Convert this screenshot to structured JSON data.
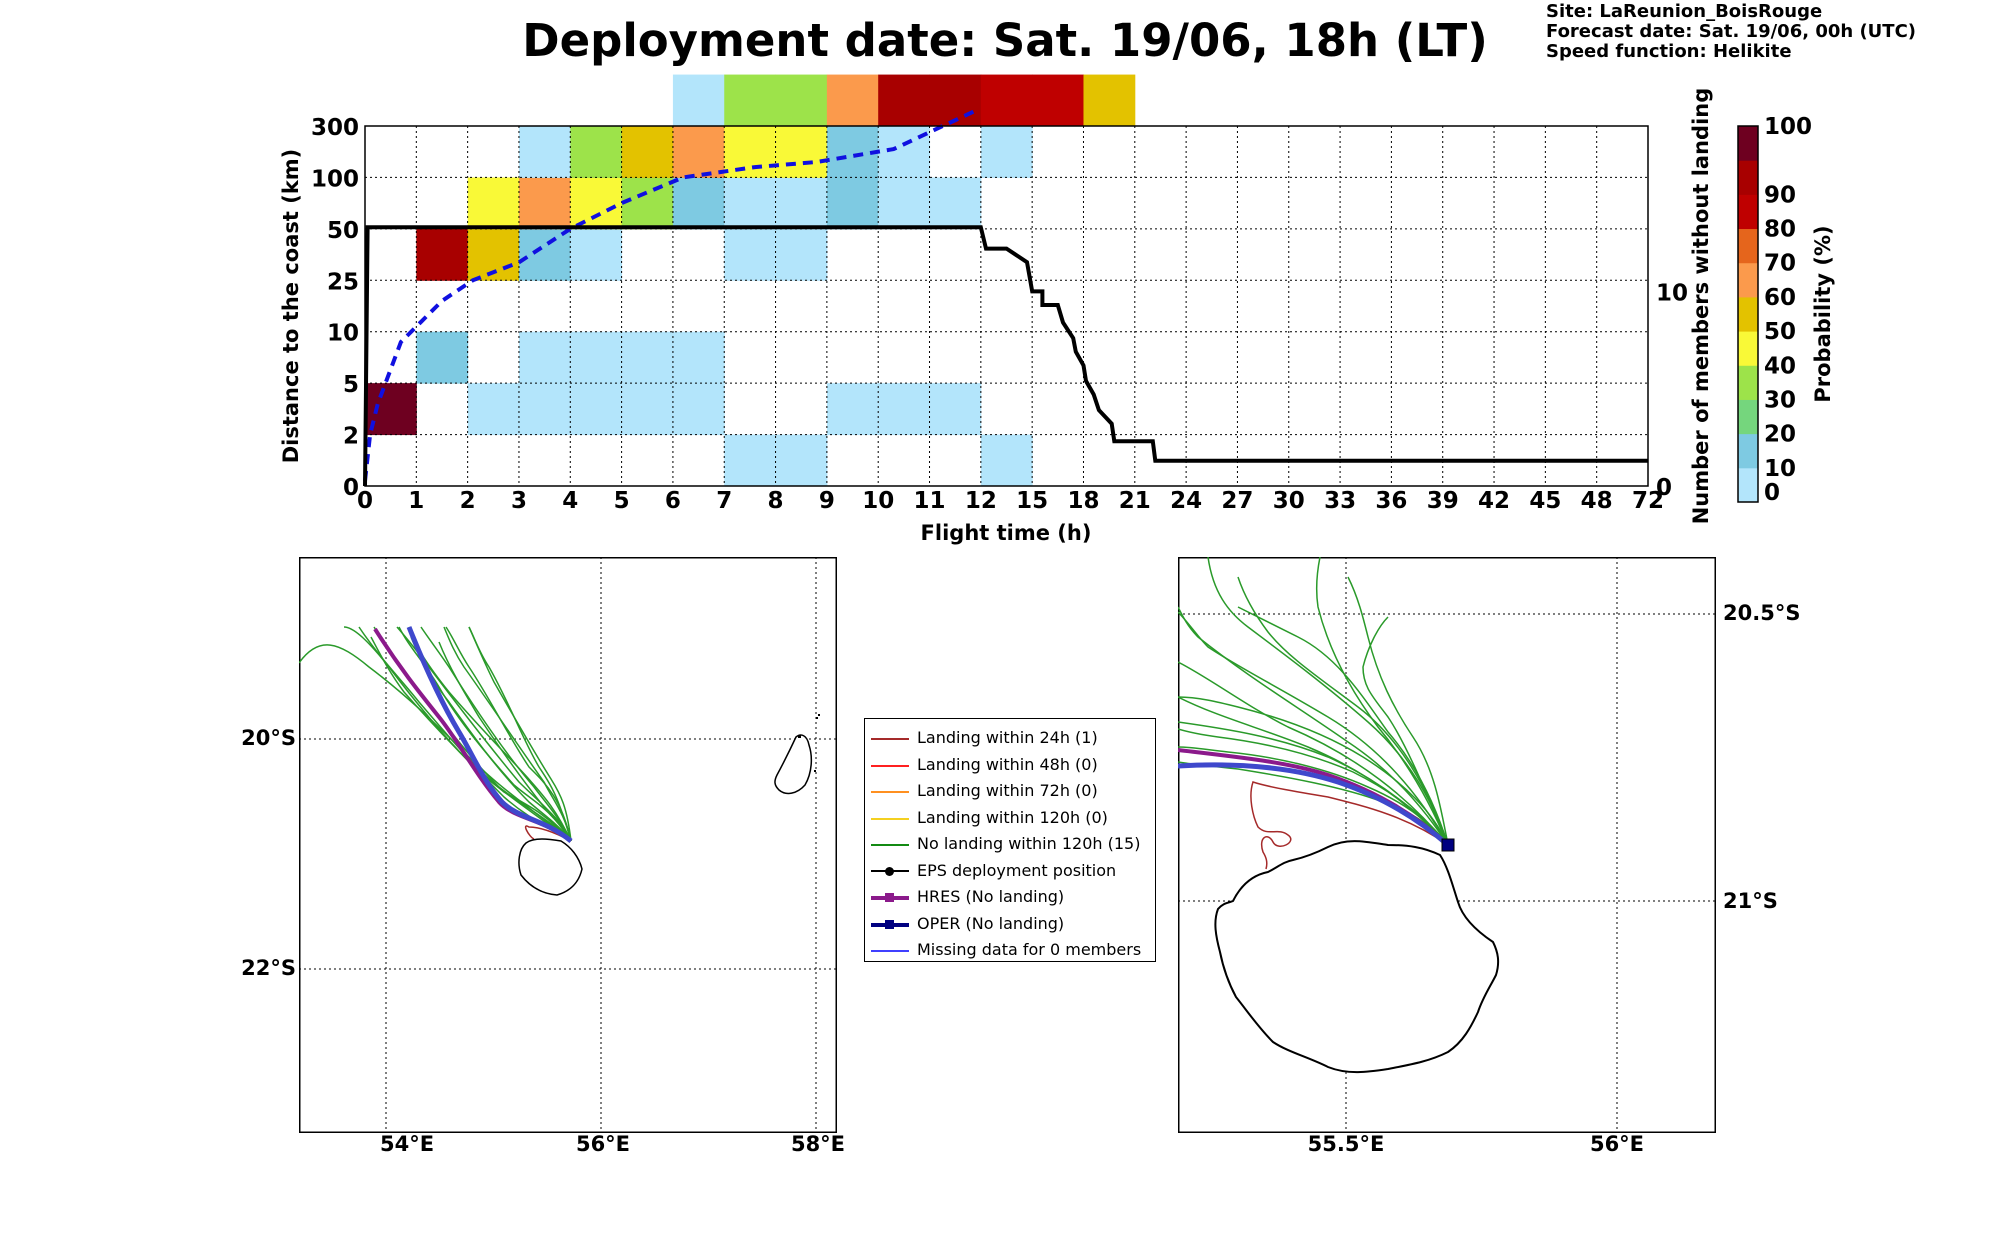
{
  "title": "Deployment date: Sat. 19/06, 18h (LT)",
  "info": {
    "site": "Site: LaReunion_BoisRouge",
    "forecast": "Forecast date: Sat. 19/06, 00h (UTC)",
    "speed": "Speed function: Helikite"
  },
  "chart_data": [
    {
      "type": "heatmap",
      "xlabel": "Flight time (h)",
      "ylabel": "Distance to the coast (km)",
      "y2label": "Number of members without landing",
      "x_ticks": [
        "0",
        "1",
        "2",
        "3",
        "4",
        "5",
        "6",
        "7",
        "8",
        "9",
        "10",
        "11",
        "12",
        "15",
        "18",
        "21",
        "24",
        "27",
        "30",
        "33",
        "36",
        "39",
        "42",
        "45",
        "48",
        "72"
      ],
      "y_ticks": [
        "0",
        "2",
        "5",
        "10",
        "25",
        "50",
        "100",
        "300"
      ],
      "y2_ticks": [
        "0",
        "10"
      ],
      "y2lim": [
        0,
        18.5
      ],
      "grid": true,
      "colorbar": {
        "label": "Probability (%)",
        "ticks": [
          "0",
          "10",
          "20",
          "30",
          "40",
          "50",
          "60",
          "70",
          "80",
          "90",
          "100"
        ],
        "colors": [
          "#b3e5fb",
          "#7ecae2",
          "#75d67d",
          "#9de34a",
          "#f9f937",
          "#e3c200",
          "#fb9a4c",
          "#e5651c",
          "#bf0000",
          "#a80000",
          "#6e0020"
        ]
      },
      "cells": [
        {
          "x": 0,
          "y": 1,
          "p": 100
        },
        {
          "x": 1,
          "y": 2,
          "p": 10
        },
        {
          "x": 1,
          "y": 4,
          "p": 90
        },
        {
          "x": 2,
          "y": 1,
          "p": 5
        },
        {
          "x": 2,
          "y": 4,
          "p": 50
        },
        {
          "x": 2,
          "y": 5,
          "p": 40
        },
        {
          "x": 3,
          "y": 1,
          "p": 5
        },
        {
          "x": 3,
          "y": 2,
          "p": 5
        },
        {
          "x": 3,
          "y": 4,
          "p": 10
        },
        {
          "x": 3,
          "y": 5,
          "p": 60
        },
        {
          "x": 3,
          "y": 6,
          "p": 5
        },
        {
          "x": 4,
          "y": 1,
          "p": 5
        },
        {
          "x": 4,
          "y": 2,
          "p": 5
        },
        {
          "x": 4,
          "y": 4,
          "p": 5
        },
        {
          "x": 4,
          "y": 5,
          "p": 40
        },
        {
          "x": 4,
          "y": 6,
          "p": 30
        },
        {
          "x": 5,
          "y": 1,
          "p": 5
        },
        {
          "x": 5,
          "y": 2,
          "p": 5
        },
        {
          "x": 5,
          "y": 5,
          "p": 30
        },
        {
          "x": 5,
          "y": 6,
          "p": 50
        },
        {
          "x": 6,
          "y": 1,
          "p": 5
        },
        {
          "x": 6,
          "y": 2,
          "p": 5
        },
        {
          "x": 6,
          "y": 5,
          "p": 10
        },
        {
          "x": 6,
          "y": 6,
          "p": 60
        },
        {
          "x": 6,
          "y": 7,
          "p": 5
        },
        {
          "x": 7,
          "y": 0,
          "p": 5
        },
        {
          "x": 7,
          "y": 4,
          "p": 5
        },
        {
          "x": 7,
          "y": 5,
          "p": 5
        },
        {
          "x": 7,
          "y": 6,
          "p": 40
        },
        {
          "x": 7,
          "y": 7,
          "p": 30
        },
        {
          "x": 8,
          "y": 0,
          "p": 5
        },
        {
          "x": 8,
          "y": 4,
          "p": 5
        },
        {
          "x": 8,
          "y": 5,
          "p": 5
        },
        {
          "x": 8,
          "y": 6,
          "p": 40
        },
        {
          "x": 8,
          "y": 7,
          "p": 30
        },
        {
          "x": 9,
          "y": 1,
          "p": 5
        },
        {
          "x": 9,
          "y": 5,
          "p": 10
        },
        {
          "x": 9,
          "y": 6,
          "p": 10
        },
        {
          "x": 9,
          "y": 7,
          "p": 60
        },
        {
          "x": 10,
          "y": 1,
          "p": 5
        },
        {
          "x": 10,
          "y": 5,
          "p": 5
        },
        {
          "x": 10,
          "y": 6,
          "p": 5
        },
        {
          "x": 10,
          "y": 7,
          "p": 90
        },
        {
          "x": 11,
          "y": 1,
          "p": 5
        },
        {
          "x": 11,
          "y": 5,
          "p": 5
        },
        {
          "x": 11,
          "y": 7,
          "p": 90
        },
        {
          "x": 12,
          "y": 0,
          "p": 5
        },
        {
          "x": 12,
          "y": 6,
          "p": 5
        },
        {
          "x": 12,
          "y": 7,
          "p": 80
        },
        {
          "x": 13,
          "y": 7,
          "p": 80
        },
        {
          "x": 14,
          "y": 7,
          "p": 50
        }
      ],
      "members_without_landing": [
        [
          0,
          0
        ],
        [
          0.05,
          13.3
        ],
        [
          12,
          13.3
        ],
        [
          12.1,
          12.2
        ],
        [
          12.5,
          12.2
        ],
        [
          12.9,
          11.5
        ],
        [
          13,
          10
        ],
        [
          13.2,
          10
        ],
        [
          13.2,
          9.3
        ],
        [
          13.5,
          9.3
        ],
        [
          13.6,
          8.4
        ],
        [
          13.8,
          7.6
        ],
        [
          13.85,
          6.9
        ],
        [
          14.0,
          6.2
        ],
        [
          14.05,
          5.4
        ],
        [
          14.2,
          4.7
        ],
        [
          14.3,
          3.9
        ],
        [
          14.55,
          3.2
        ],
        [
          14.6,
          2.3
        ],
        [
          15.35,
          2.3
        ],
        [
          15.4,
          1.3
        ],
        [
          25,
          1.3
        ]
      ],
      "mean_distance_curve": [
        [
          0,
          0.1
        ],
        [
          0.1,
          1
        ],
        [
          0.25,
          1.6
        ],
        [
          0.4,
          2
        ],
        [
          0.7,
          2.8
        ],
        [
          1.1,
          3.2
        ],
        [
          1.5,
          3.6
        ],
        [
          2.1,
          4
        ],
        [
          3.0,
          4.35
        ],
        [
          4.0,
          5
        ],
        [
          5.0,
          5.5
        ],
        [
          6.2,
          6
        ],
        [
          7.6,
          6.2
        ],
        [
          8.8,
          6.3
        ],
        [
          10.3,
          6.55
        ],
        [
          11.9,
          7.3
        ]
      ]
    }
  ],
  "maps": {
    "left": {
      "x_ticks": [
        "54°E",
        "56°E",
        "58°E"
      ],
      "y_ticks": [
        "20°S",
        "22°S"
      ]
    },
    "right": {
      "x_ticks": [
        "55.5°E",
        "56°E"
      ],
      "y_ticks": [
        "20.5°S",
        "21°S"
      ]
    }
  },
  "legend": {
    "items": [
      {
        "label": "Landing within 24h (1)",
        "color": "#a52a2a"
      },
      {
        "label": "Landing within 48h (0)",
        "color": "#ff2020"
      },
      {
        "label": "Landing within 72h (0)",
        "color": "#ff9020"
      },
      {
        "label": "Landing within 120h (0)",
        "color": "#f4d020"
      },
      {
        "label": "No landing within 120h (15)",
        "color": "#138a13"
      },
      {
        "label": "EPS deployment position",
        "color": "#000000"
      },
      {
        "label": "HRES (No landing)",
        "color": "#8b1a8b"
      },
      {
        "label": "OPER (No landing)",
        "color": "#000080"
      },
      {
        "label": "Missing data for 0 members",
        "color": "#4040ff"
      }
    ]
  }
}
